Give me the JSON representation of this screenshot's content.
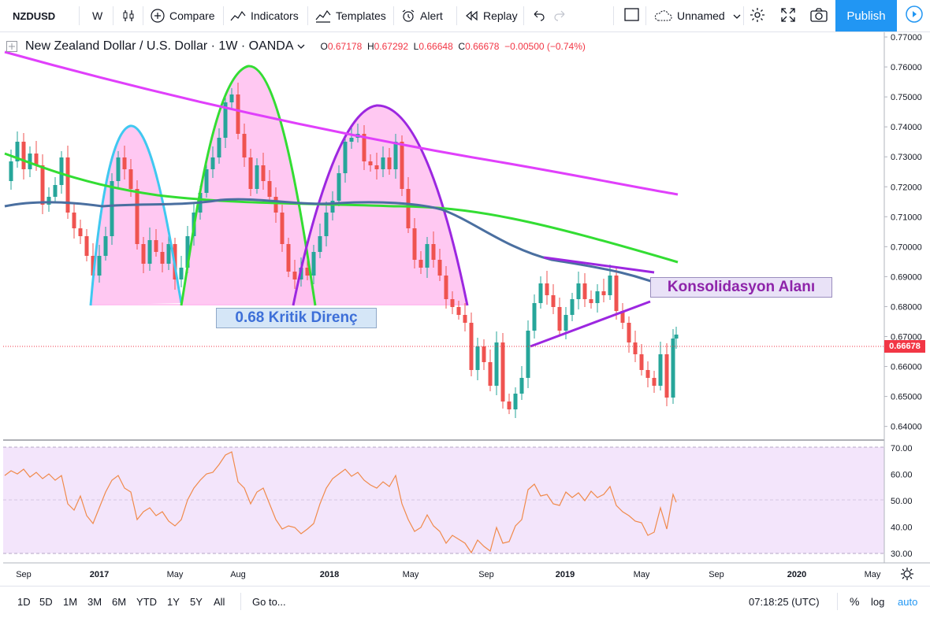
{
  "toolbar": {
    "symbol": "NZDUSD",
    "interval": "W",
    "compare": "Compare",
    "indicators": "Indicators",
    "templates": "Templates",
    "alert": "Alert",
    "replay": "Replay",
    "layout_name": "Unnamed",
    "publish": "Publish"
  },
  "legend": {
    "title": "New Zealand Dollar / U.S. Dollar · 1W · OANDA",
    "o_label": "O",
    "o": "0.67178",
    "h_label": "H",
    "h": "0.67292",
    "l_label": "L",
    "l": "0.66648",
    "c_label": "C",
    "c": "0.66678",
    "change": "−0.00500 (−0.74%)"
  },
  "price_axis": [
    "0.77000",
    "0.76000",
    "0.75000",
    "0.74000",
    "0.73000",
    "0.72000",
    "0.71000",
    "0.70000",
    "0.69000",
    "0.68000",
    "0.67000",
    "0.66000",
    "0.65000",
    "0.64000"
  ],
  "last_price": "0.66678",
  "rsi_axis": [
    "70.00",
    "60.00",
    "50.00",
    "40.00",
    "30.00"
  ],
  "time_axis": [
    "Sep",
    "2017",
    "May",
    "Aug",
    "2018",
    "May",
    "Sep",
    "2019",
    "May",
    "Sep",
    "2020",
    "May"
  ],
  "annotations": {
    "resistance": "0.68 Kritik Direnç",
    "consolidation": "Konsolidasyon Alanı"
  },
  "bottombar": {
    "ranges": [
      "1D",
      "5D",
      "1M",
      "3M",
      "6M",
      "YTD",
      "1Y",
      "5Y",
      "All"
    ],
    "goto": "Go to...",
    "time": "07:18:25 (UTC)",
    "percent": "%",
    "log": "log",
    "auto": "auto"
  },
  "colors": {
    "up": "#26a69a",
    "down": "#ef5350",
    "accent": "#2196f3",
    "ma_magenta": "#e040fb",
    "ma_green": "#33dd33",
    "ma_blue": "#4a6fa0",
    "rsi_line": "#f08a4b",
    "rsi_bg": "#f3e5fb"
  },
  "chart_data": {
    "type": "candlestick",
    "symbol": "NZDUSD",
    "timeframe": "1W",
    "ylim": [
      0.635,
      0.775
    ],
    "last_close": 0.66678,
    "rsi_ylim": [
      28,
      72
    ]
  }
}
